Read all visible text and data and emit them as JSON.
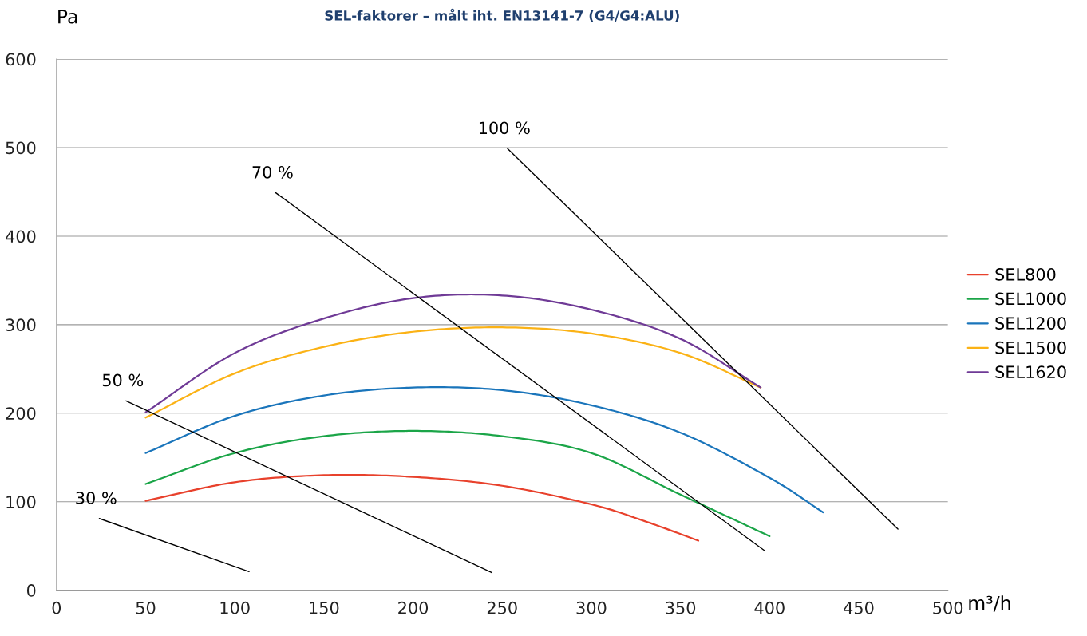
{
  "chart_data": {
    "type": "line",
    "title": "SEL-faktorer – målt iht. EN13141-7 (G4/G4:ALU)",
    "xlabel": "m³/h",
    "ylabel": "Pa",
    "xlim": [
      0,
      500
    ],
    "ylim": [
      0,
      600
    ],
    "xticks": [
      0,
      50,
      100,
      150,
      200,
      250,
      300,
      350,
      400,
      450,
      500
    ],
    "yticks": [
      0,
      100,
      200,
      300,
      400,
      500,
      600
    ],
    "grid": "y",
    "legend": "right",
    "marker": "none",
    "line_style": "solid",
    "series": [
      {
        "name": "SEL800",
        "color": "#e8412c",
        "x": [
          50,
          100,
          150,
          200,
          250,
          300,
          330,
          360
        ],
        "values": [
          101,
          122,
          130,
          128,
          118,
          97,
          78,
          56
        ]
      },
      {
        "name": "SEL1000",
        "color": "#1ba548",
        "x": [
          50,
          100,
          150,
          200,
          250,
          300,
          350,
          400
        ],
        "values": [
          120,
          155,
          174,
          180,
          174,
          155,
          108,
          61
        ]
      },
      {
        "name": "SEL1200",
        "color": "#1a75bb",
        "x": [
          50,
          100,
          150,
          200,
          250,
          300,
          350,
          400,
          430
        ],
        "values": [
          155,
          197,
          220,
          229,
          226,
          209,
          178,
          127,
          88
        ]
      },
      {
        "name": "SEL1500",
        "color": "#fbb215",
        "x": [
          50,
          100,
          150,
          200,
          250,
          300,
          350,
          395
        ],
        "values": [
          195,
          245,
          275,
          292,
          297,
          290,
          268,
          229
        ]
      },
      {
        "name": "SEL1620",
        "color": "#6f3a96",
        "x": [
          50,
          100,
          150,
          200,
          250,
          300,
          350,
          395
        ],
        "values": [
          201,
          268,
          307,
          330,
          333,
          317,
          284,
          229
        ]
      },
      {
        "color": "#000000",
        "x": [
          24,
          108
        ],
        "values": [
          81,
          21
        ]
      },
      {
        "color": "#000000",
        "x": [
          39,
          244
        ],
        "values": [
          214,
          20
        ]
      },
      {
        "color": "#000000",
        "x": [
          123,
          397
        ],
        "values": [
          449,
          45
        ]
      },
      {
        "color": "#000000",
        "x": [
          253,
          472
        ],
        "values": [
          499,
          69
        ]
      }
    ],
    "annotations": [
      {
        "text": "30 %",
        "x": 24,
        "y": 81
      },
      {
        "text": "50 %",
        "x": 39,
        "y": 214
      },
      {
        "text": "70 %",
        "x": 123,
        "y": 449
      },
      {
        "text": "100 %",
        "x": 253,
        "y": 499
      }
    ]
  }
}
